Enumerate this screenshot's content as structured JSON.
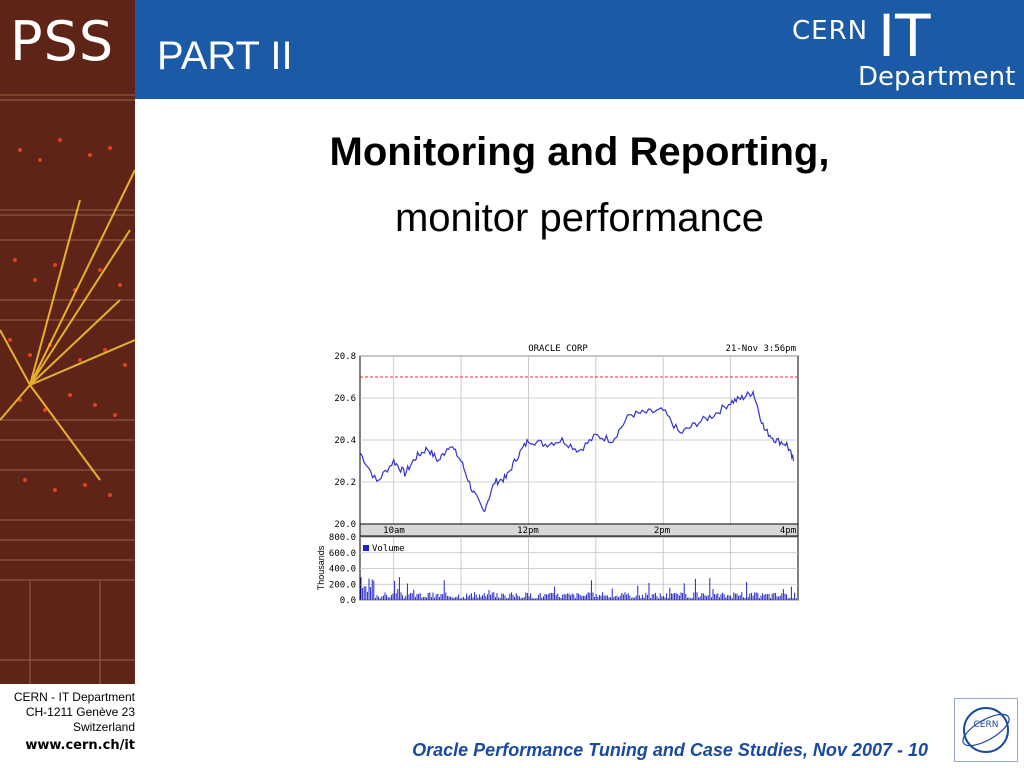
{
  "branding": {
    "pss_logo": "PSS",
    "cern_word": "CERN",
    "it_word": "IT",
    "department_word": "Department",
    "seal_text": "CERN"
  },
  "header": {
    "part_title": "PART II"
  },
  "slide": {
    "heading": "Monitoring and Reporting,",
    "subheading": "monitor performance"
  },
  "footer": {
    "address_lines": [
      "CERN - IT Department",
      "CH-1211 Genève 23",
      "Switzerland"
    ],
    "url": "www.cern.ch/it",
    "caption": "Oracle Performance Tuning and Case Studies, Nov 2007 - 10"
  },
  "colors": {
    "banner": "#1a5aa6",
    "price_line": "#3333cc",
    "volume_bars": "#2222cc",
    "reference_line": "#e03030",
    "caption": "#1a4aa0"
  },
  "chart_data": [
    {
      "type": "line",
      "title": "ORACLE CORP",
      "timestamp": "21-Nov 3:56pm",
      "x_tick_labels": [
        "10am",
        "12pm",
        "2pm",
        "4pm"
      ],
      "y_tick_labels": [
        "20.8",
        "20.6",
        "20.4",
        "20.2",
        "20.0"
      ],
      "ylim": [
        20.0,
        20.8
      ],
      "grid": true,
      "reference_line_y": 20.7,
      "series": [
        {
          "x": [
            "9:30",
            "9:45",
            "10:00",
            "10:10",
            "10:20",
            "10:30",
            "10:40",
            "10:50",
            "11:00",
            "11:10",
            "11:20",
            "11:30",
            "11:40",
            "11:50",
            "12:00",
            "12:15",
            "12:30",
            "12:45",
            "13:00",
            "13:15",
            "13:30",
            "13:45",
            "14:00",
            "14:15",
            "14:30",
            "14:45",
            "15:00",
            "15:10",
            "15:20",
            "15:30",
            "15:40",
            "15:50",
            "15:56"
          ],
          "values": [
            20.34,
            20.2,
            20.3,
            20.24,
            20.32,
            20.36,
            20.3,
            20.38,
            20.3,
            20.16,
            20.06,
            20.2,
            20.22,
            20.32,
            20.4,
            20.38,
            20.4,
            20.35,
            20.42,
            20.4,
            20.52,
            20.53,
            20.54,
            20.43,
            20.48,
            20.52,
            20.58,
            20.6,
            20.63,
            20.45,
            20.4,
            20.38,
            20.3
          ]
        }
      ]
    },
    {
      "type": "bar",
      "ylabel": "Thousands",
      "legend": [
        "Volume"
      ],
      "legend_position": "top-left",
      "y_tick_labels": [
        "800.0",
        "600.0",
        "400.0",
        "200.0",
        "0.0"
      ],
      "ylim": [
        0,
        800
      ],
      "grid": true
    }
  ]
}
